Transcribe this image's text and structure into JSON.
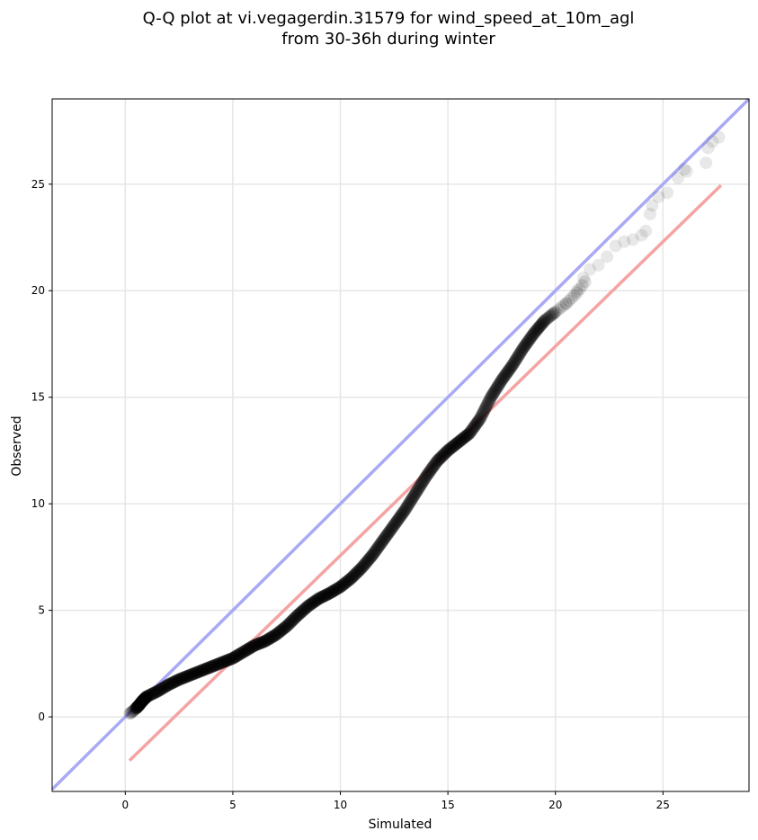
{
  "chart_data": {
    "type": "scatter",
    "title_lines": [
      "Q-Q plot at vi.vegagerdin.31579 for wind_speed_at_10m_agl",
      "from 30-36h during winter"
    ],
    "xlabel": "Simulated",
    "ylabel": "Observed",
    "xlim": [
      -3.4,
      29.0
    ],
    "ylim": [
      -3.5,
      29.0
    ],
    "xticks": [
      0,
      5,
      10,
      15,
      20,
      25
    ],
    "yticks": [
      0,
      5,
      10,
      15,
      20,
      25
    ],
    "grid": true,
    "identity_line": {
      "color": "#a9a9f5",
      "from": [
        -3.4,
        -3.4
      ],
      "to": [
        29.0,
        29.0
      ]
    },
    "fit_line": {
      "color": "#f5a3a3",
      "from": [
        0.2,
        -2.05
      ],
      "to": [
        27.7,
        24.95
      ]
    },
    "points_color": "#000000",
    "quantile_curve": [
      [
        0.2,
        0.15
      ],
      [
        0.4,
        0.3
      ],
      [
        0.6,
        0.5
      ],
      [
        0.8,
        0.75
      ],
      [
        1.0,
        0.95
      ],
      [
        1.5,
        1.2
      ],
      [
        2.0,
        1.5
      ],
      [
        2.5,
        1.75
      ],
      [
        3.0,
        1.95
      ],
      [
        3.5,
        2.15
      ],
      [
        4.0,
        2.35
      ],
      [
        4.5,
        2.55
      ],
      [
        5.0,
        2.75
      ],
      [
        5.5,
        3.05
      ],
      [
        6.0,
        3.35
      ],
      [
        6.5,
        3.55
      ],
      [
        7.0,
        3.85
      ],
      [
        7.5,
        4.25
      ],
      [
        8.0,
        4.75
      ],
      [
        8.5,
        5.2
      ],
      [
        9.0,
        5.55
      ],
      [
        9.5,
        5.8
      ],
      [
        10.0,
        6.1
      ],
      [
        10.5,
        6.5
      ],
      [
        11.0,
        7.0
      ],
      [
        11.5,
        7.6
      ],
      [
        12.0,
        8.3
      ],
      [
        12.5,
        9.0
      ],
      [
        13.0,
        9.7
      ],
      [
        13.5,
        10.5
      ],
      [
        14.0,
        11.3
      ],
      [
        14.5,
        12.0
      ],
      [
        15.0,
        12.5
      ],
      [
        15.5,
        12.9
      ],
      [
        16.0,
        13.3
      ],
      [
        16.5,
        14.0
      ],
      [
        17.0,
        15.0
      ],
      [
        17.5,
        15.8
      ],
      [
        18.0,
        16.5
      ],
      [
        18.5,
        17.3
      ],
      [
        19.0,
        18.0
      ],
      [
        19.5,
        18.6
      ],
      [
        20.0,
        19.0
      ],
      [
        20.5,
        19.4
      ],
      [
        21.0,
        19.9
      ],
      [
        21.5,
        20.6
      ],
      [
        22.0,
        21.2
      ],
      [
        22.5,
        21.7
      ],
      [
        23.0,
        22.1
      ],
      [
        23.5,
        22.4
      ],
      [
        24.0,
        22.8
      ],
      [
        24.3,
        23.6
      ],
      [
        24.5,
        24.2
      ],
      [
        25.0,
        24.5
      ],
      [
        25.5,
        25.3
      ],
      [
        26.0,
        25.7
      ],
      [
        26.5,
        26.2
      ],
      [
        27.0,
        26.7
      ],
      [
        27.5,
        27.2
      ]
    ],
    "sparse_points": [
      [
        20.5,
        19.4
      ],
      [
        21.0,
        20.0
      ],
      [
        21.3,
        20.6
      ],
      [
        21.6,
        21.0
      ],
      [
        22.0,
        21.2
      ],
      [
        22.4,
        21.6
      ],
      [
        22.8,
        22.1
      ],
      [
        23.2,
        22.3
      ],
      [
        23.6,
        22.4
      ],
      [
        24.0,
        22.6
      ],
      [
        24.2,
        22.8
      ],
      [
        24.4,
        23.6
      ],
      [
        24.5,
        24.0
      ],
      [
        24.8,
        24.4
      ],
      [
        25.2,
        24.6
      ],
      [
        25.7,
        25.3
      ],
      [
        26.0,
        25.7
      ],
      [
        26.1,
        25.6
      ],
      [
        27.0,
        26.0
      ],
      [
        27.1,
        26.7
      ],
      [
        27.3,
        27.0
      ],
      [
        27.6,
        27.2
      ]
    ]
  }
}
